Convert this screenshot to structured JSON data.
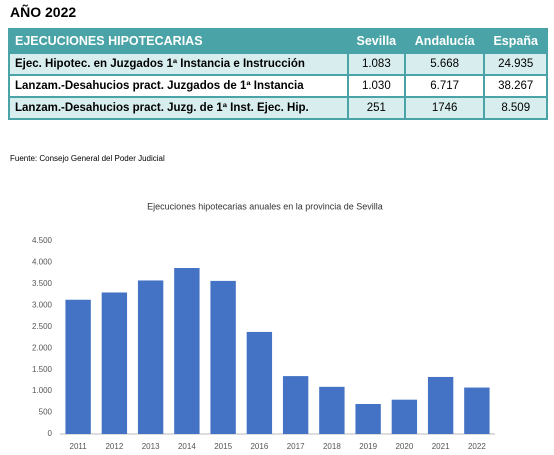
{
  "heading": "AÑO 2022",
  "table": {
    "header": [
      "EJECUCIONES HIPOTECARIAS",
      "Sevilla",
      "Andalucía",
      "España"
    ],
    "rows": [
      [
        "Ejec. Hipotec. en Juzgados 1ª Instancia e Instrucción",
        "1.083",
        "5.668",
        "24.935"
      ],
      [
        "Lanzam.-Desahucios pract. Juzgados de 1ª Instancia",
        "1.030",
        "6.717",
        "38.267"
      ],
      [
        "Lanzam.-Desahucios pract. Juzg. de 1ª Inst. Ejec. Hip.",
        "251",
        "1746",
        "8.509"
      ]
    ]
  },
  "source": "Fuente: Consejo General del Poder Judicial",
  "chart_data": {
    "type": "bar",
    "title": "Ejecuciones hipotecarias anuales en la provincia de Sevilla",
    "categories": [
      "2011",
      "2012",
      "2013",
      "2014",
      "2015",
      "2016",
      "2017",
      "2018",
      "2019",
      "2020",
      "2021",
      "2022"
    ],
    "values": [
      3130,
      3300,
      3580,
      3870,
      3570,
      2380,
      1350,
      1100,
      700,
      800,
      1330,
      1083
    ],
    "color": "#4472c4",
    "ylim": [
      0,
      4500
    ],
    "yticks": [
      0,
      500,
      {
        "value": 1000,
        "label": "1.000"
      },
      {
        "value": 1500,
        "label": "1.500"
      },
      {
        "value": 2000,
        "label": "2.000"
      },
      {
        "value": 2500,
        "label": "2.500"
      },
      {
        "value": 3000,
        "label": "3.000"
      },
      {
        "value": 3500,
        "label": "3.500"
      },
      {
        "value": 4000,
        "label": "4.000"
      },
      {
        "value": 4500,
        "label": "4.500"
      }
    ],
    "grid": false
  }
}
